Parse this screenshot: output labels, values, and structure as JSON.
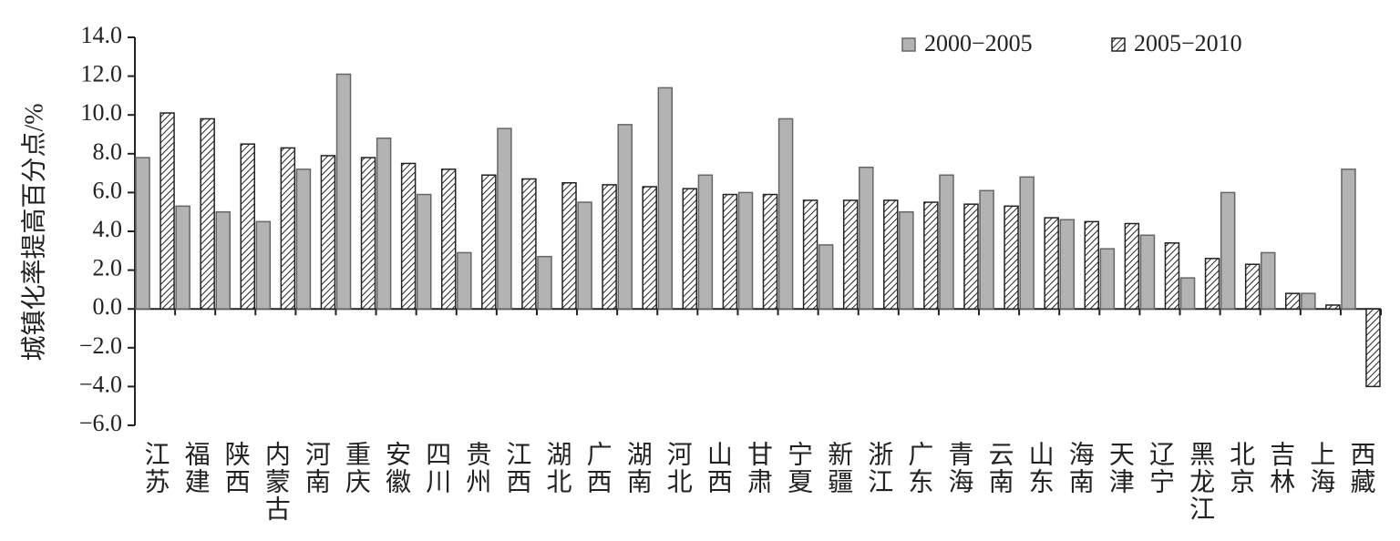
{
  "chart_data": {
    "type": "bar",
    "y_label": "城镇化率提高百分点/%",
    "categories": [
      "江苏",
      "福建",
      "陕西",
      "内蒙古",
      "河南",
      "重庆",
      "安徽",
      "四川",
      "贵州",
      "江西",
      "湖北",
      "广西",
      "湖南",
      "河北",
      "山西",
      "甘肃",
      "宁夏",
      "新疆",
      "浙江",
      "广东",
      "青海",
      "云南",
      "山东",
      "海南",
      "天津",
      "辽宁",
      "黑龙江",
      "北京",
      "吉林",
      "上海",
      "西藏"
    ],
    "series": [
      {
        "name": "2000−2005",
        "color": "#b3b3b3",
        "pattern": "solid",
        "values": [
          7.8,
          5.3,
          5.0,
          4.5,
          7.2,
          12.1,
          8.8,
          5.9,
          2.9,
          9.3,
          2.7,
          5.5,
          9.5,
          11.4,
          6.9,
          6.0,
          9.8,
          3.3,
          7.3,
          5.0,
          6.9,
          6.1,
          6.8,
          4.6,
          3.1,
          3.8,
          1.6,
          6.0,
          2.9,
          0.8,
          7.2
        ]
      },
      {
        "name": "2005−2010",
        "color": "#222222",
        "pattern": "hatch",
        "values": [
          10.1,
          9.8,
          8.5,
          8.3,
          7.9,
          7.8,
          7.5,
          7.2,
          6.9,
          6.7,
          6.5,
          6.4,
          6.3,
          6.2,
          5.9,
          5.9,
          5.6,
          5.6,
          5.6,
          5.5,
          5.4,
          5.3,
          4.7,
          4.5,
          4.4,
          3.4,
          2.6,
          2.3,
          0.8,
          0.2,
          -4.0
        ]
      }
    ],
    "ylim": [
      -6,
      14
    ],
    "yticks": [
      {
        "value": -6,
        "label": "−6.0"
      },
      {
        "value": -4,
        "label": "−4.0"
      },
      {
        "value": -2,
        "label": "−2.0"
      },
      {
        "value": 0,
        "label": "0.0"
      },
      {
        "value": 2,
        "label": "2.0"
      },
      {
        "value": 4,
        "label": "4.0"
      },
      {
        "value": 6,
        "label": "6.0"
      },
      {
        "value": 8,
        "label": "8.0"
      },
      {
        "value": 10,
        "label": "10.0"
      },
      {
        "value": 12,
        "label": "12.0"
      },
      {
        "value": 14,
        "label": "14.0"
      }
    ],
    "grid": false,
    "legend": "top-right"
  }
}
